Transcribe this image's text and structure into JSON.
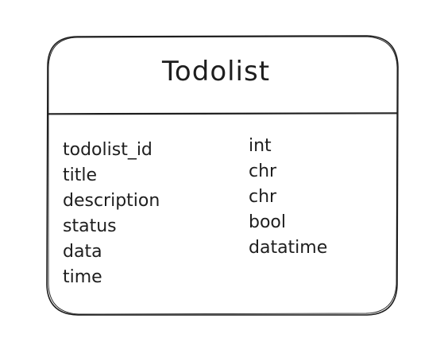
{
  "entity": {
    "title": "Todolist",
    "fields": [
      {
        "name": "todolist_id",
        "type": "int"
      },
      {
        "name": "title",
        "type": "chr"
      },
      {
        "name": "description",
        "type": "chr"
      },
      {
        "name": "status",
        "type": "bool"
      },
      {
        "name": "data",
        "type": "datatime"
      },
      {
        "name": "time",
        "type": ""
      }
    ]
  },
  "colors": {
    "stroke": "#1e1e1e",
    "background": "#ffffff"
  }
}
